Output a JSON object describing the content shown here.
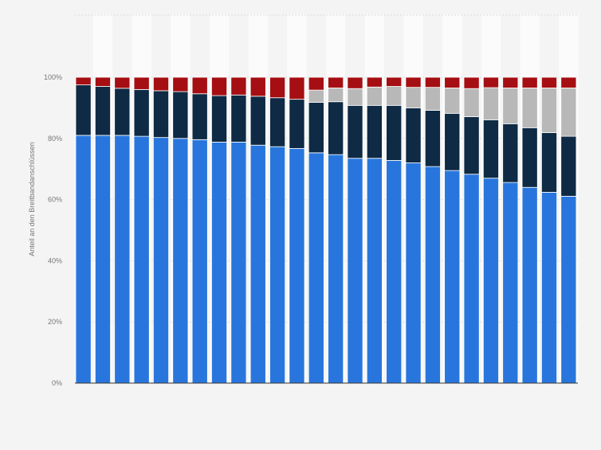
{
  "chart_data": {
    "type": "bar",
    "stacked": true,
    "ylabel": "Anteil an den Breitbandanschlüssen",
    "ylim": [
      0,
      100
    ],
    "y_ticks": [
      "0%",
      "20%",
      "40%",
      "60%",
      "80%",
      "100%"
    ],
    "y_tick_values": [
      0,
      20,
      40,
      60,
      80,
      100
    ],
    "grid": true,
    "legend": "none",
    "bar_count": 26,
    "series": [
      {
        "color": "#2876dd",
        "values": [
          81,
          81,
          81,
          80.7,
          80.3,
          80,
          79.6,
          78.8,
          78.8,
          77.8,
          77.3,
          76.7,
          75.3,
          74.7,
          73.5,
          73.5,
          72.8,
          72,
          70.8,
          69.5,
          68.3,
          67,
          65.6,
          64,
          62.4,
          61.1
        ]
      },
      {
        "color": "#0e2a44",
        "values": [
          16.5,
          16,
          15.4,
          15.3,
          15.3,
          15.3,
          15,
          15.2,
          15.4,
          16,
          16,
          16.1,
          16.5,
          17.3,
          17.3,
          17.3,
          18,
          18,
          18.4,
          18.7,
          18.8,
          19.1,
          19.2,
          19.5,
          19.5,
          19.6
        ]
      },
      {
        "color": "#b8b8b8",
        "values": [
          0,
          0,
          0,
          0,
          0,
          0,
          0,
          0,
          0,
          0,
          0,
          0,
          4,
          4.5,
          5.5,
          6,
          6.2,
          6.7,
          7.5,
          8.3,
          9.2,
          10.5,
          11.7,
          13,
          14.6,
          15.8
        ]
      },
      {
        "color": "#a50e12",
        "values": [
          2.5,
          3,
          3.6,
          4,
          4.4,
          4.7,
          5.4,
          6,
          5.8,
          6.2,
          6.7,
          7.2,
          4.2,
          3.5,
          3.7,
          3.2,
          3,
          3.3,
          3.3,
          3.5,
          3.7,
          3.4,
          3.5,
          3.5,
          3.5,
          3.5
        ]
      }
    ]
  }
}
